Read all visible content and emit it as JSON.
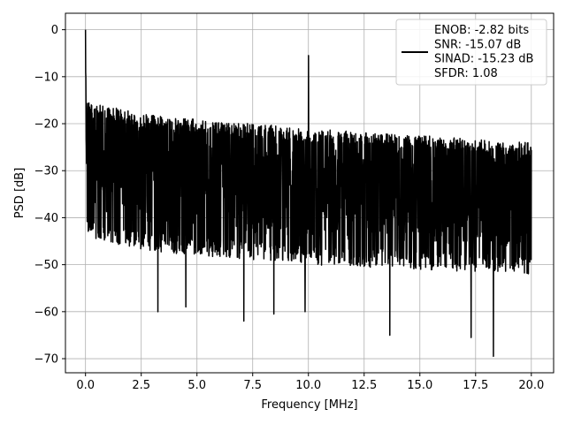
{
  "chart_data": {
    "type": "line",
    "title": "",
    "xlabel": "Frequency [MHz]",
    "ylabel": "PSD [dB]",
    "xlim": [
      -0.9,
      21.0
    ],
    "ylim": [
      -73,
      3.5
    ],
    "grid": true,
    "x_ticks": [
      0.0,
      2.5,
      5.0,
      7.5,
      10.0,
      12.5,
      15.0,
      17.5,
      20.0
    ],
    "x_tick_labels": [
      "0.0",
      "2.5",
      "5.0",
      "7.5",
      "10.0",
      "12.5",
      "15.0",
      "17.5",
      "20.0"
    ],
    "y_ticks": [
      0,
      -10,
      -20,
      -30,
      -40,
      -50,
      -60,
      -70
    ],
    "y_tick_labels": [
      "0",
      "−10",
      "−20",
      "−30",
      "−40",
      "−50",
      "−60",
      "−70"
    ],
    "legend": {
      "placement": "top-right",
      "lines": [
        "ENOB: -2.82 bits",
        "SNR: -15.07 dB",
        "SINAD: -15.23 dB",
        "SFDR: 1.08"
      ]
    },
    "series": [
      {
        "color": "#000000",
        "x_range": [
          0.0,
          20.0
        ],
        "peak": {
          "x": 0.0,
          "y": 0.0
        },
        "spur": {
          "x": 10.0,
          "y": -5.5
        },
        "noise_upper_envelope": [
          [
            0.05,
            -15
          ],
          [
            2.5,
            -18
          ],
          [
            10.0,
            -21
          ],
          [
            20.0,
            -24
          ]
        ],
        "noise_lower_envelope": [
          [
            0.1,
            -44
          ],
          [
            2.5,
            -47
          ],
          [
            10.0,
            -50
          ],
          [
            20.0,
            -52
          ]
        ],
        "dips": [
          {
            "x": 3.25,
            "y": -60
          },
          {
            "x": 4.5,
            "y": -59
          },
          {
            "x": 7.1,
            "y": -62
          },
          {
            "x": 8.45,
            "y": -60.5
          },
          {
            "x": 9.85,
            "y": -60
          },
          {
            "x": 13.65,
            "y": -65
          },
          {
            "x": 17.3,
            "y": -65.5
          },
          {
            "x": 18.3,
            "y": -69.5
          }
        ]
      }
    ]
  }
}
